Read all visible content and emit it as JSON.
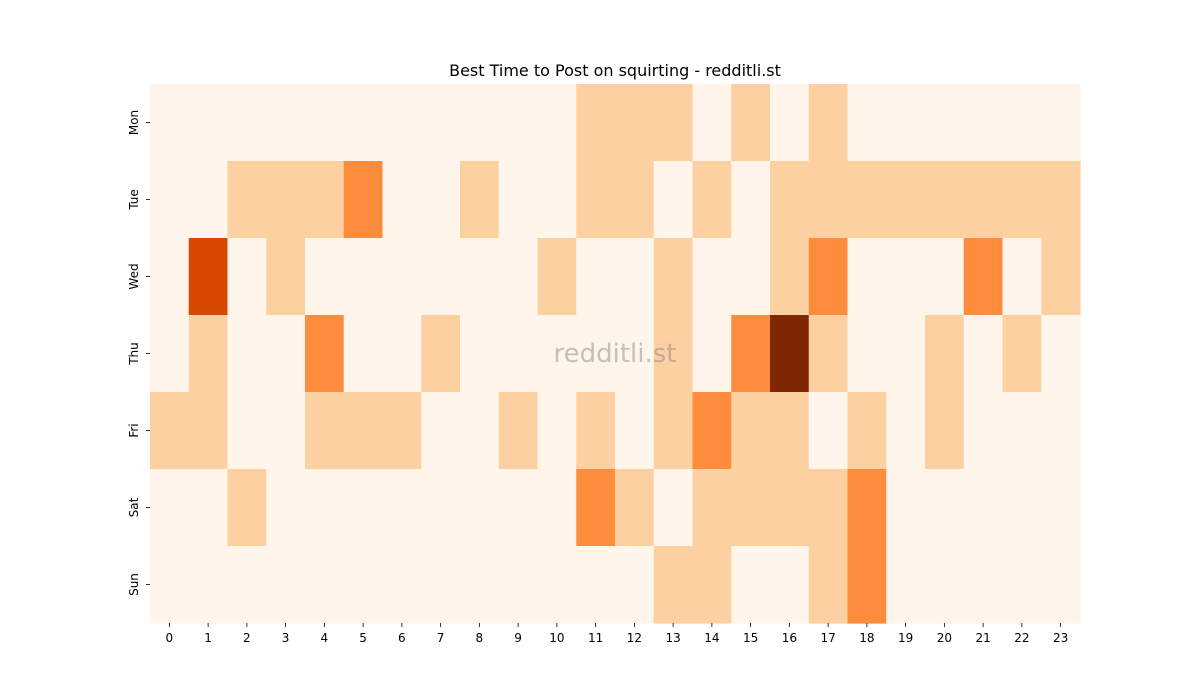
{
  "chart_data": {
    "type": "heatmap",
    "title": "Best Time to Post on squirting - redditli.st",
    "xlabel": "",
    "ylabel": "",
    "x_categories": [
      "0",
      "1",
      "2",
      "3",
      "4",
      "5",
      "6",
      "7",
      "8",
      "9",
      "10",
      "11",
      "12",
      "13",
      "14",
      "15",
      "16",
      "17",
      "18",
      "19",
      "20",
      "21",
      "22",
      "23"
    ],
    "y_categories": [
      "Mon",
      "Tue",
      "Wed",
      "Thu",
      "Fri",
      "Sat",
      "Sun"
    ],
    "values": [
      [
        0,
        0,
        0,
        0,
        0,
        0,
        0,
        0,
        0,
        0,
        0,
        1,
        1,
        1,
        0,
        1,
        0,
        1,
        0,
        0,
        0,
        0,
        0,
        0
      ],
      [
        0,
        0,
        1,
        1,
        1,
        2,
        0,
        0,
        1,
        0,
        0,
        1,
        1,
        0,
        1,
        0,
        1,
        1,
        1,
        1,
        1,
        1,
        1,
        1
      ],
      [
        0,
        3,
        0,
        1,
        0,
        0,
        0,
        0,
        0,
        0,
        1,
        0,
        0,
        1,
        0,
        0,
        1,
        2,
        0,
        0,
        0,
        2,
        0,
        1
      ],
      [
        0,
        1,
        0,
        0,
        2,
        0,
        0,
        1,
        0,
        0,
        0,
        0,
        0,
        1,
        0,
        2,
        4,
        1,
        0,
        0,
        1,
        0,
        1,
        0
      ],
      [
        1,
        1,
        0,
        0,
        1,
        1,
        1,
        0,
        0,
        1,
        0,
        1,
        0,
        1,
        2,
        1,
        1,
        0,
        1,
        0,
        1,
        0,
        0,
        0
      ],
      [
        0,
        0,
        1,
        0,
        0,
        0,
        0,
        0,
        0,
        0,
        0,
        2,
        1,
        0,
        1,
        1,
        1,
        1,
        2,
        0,
        0,
        0,
        0,
        0
      ],
      [
        0,
        0,
        0,
        0,
        0,
        0,
        0,
        0,
        0,
        0,
        0,
        0,
        0,
        1,
        1,
        0,
        0,
        1,
        2,
        0,
        0,
        0,
        0,
        0
      ]
    ],
    "colormap": [
      "#fff5eb",
      "#fdd0a2",
      "#fd8d3c",
      "#d94801",
      "#7f2704"
    ],
    "watermark": "redditli.st",
    "grid": false,
    "legend": "none"
  }
}
